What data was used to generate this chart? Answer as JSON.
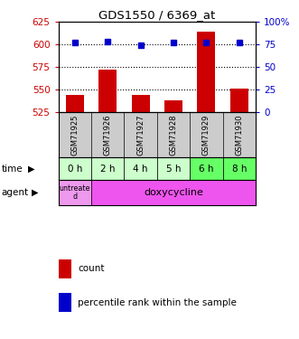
{
  "title": "GDS1550 / 6369_at",
  "samples": [
    "GSM71925",
    "GSM71926",
    "GSM71927",
    "GSM71928",
    "GSM71929",
    "GSM71930"
  ],
  "counts": [
    544,
    572,
    544,
    538,
    614,
    551
  ],
  "percentiles": [
    77,
    78,
    74,
    77,
    77,
    77
  ],
  "ylim_left": [
    525,
    625
  ],
  "ylim_right": [
    0,
    100
  ],
  "yticks_left": [
    525,
    550,
    575,
    600,
    625
  ],
  "yticks_right": [
    0,
    25,
    50,
    75,
    100
  ],
  "ytick_labels_right": [
    "0",
    "25",
    "50",
    "75",
    "100%"
  ],
  "time_labels": [
    "0 h",
    "2 h",
    "4 h",
    "5 h",
    "6 h",
    "8 h"
  ],
  "time_colors": [
    "#ccffcc",
    "#ccffcc",
    "#ccffcc",
    "#ccffcc",
    "#66ff66",
    "#66ff66"
  ],
  "bar_color": "#cc0000",
  "dot_color": "#0000cc",
  "agent_untreated_color": "#ee99ee",
  "agent_doxy_color": "#ee55ee",
  "sample_bg_color": "#cccccc",
  "grid_color": "#000000",
  "background_color": "#ffffff"
}
